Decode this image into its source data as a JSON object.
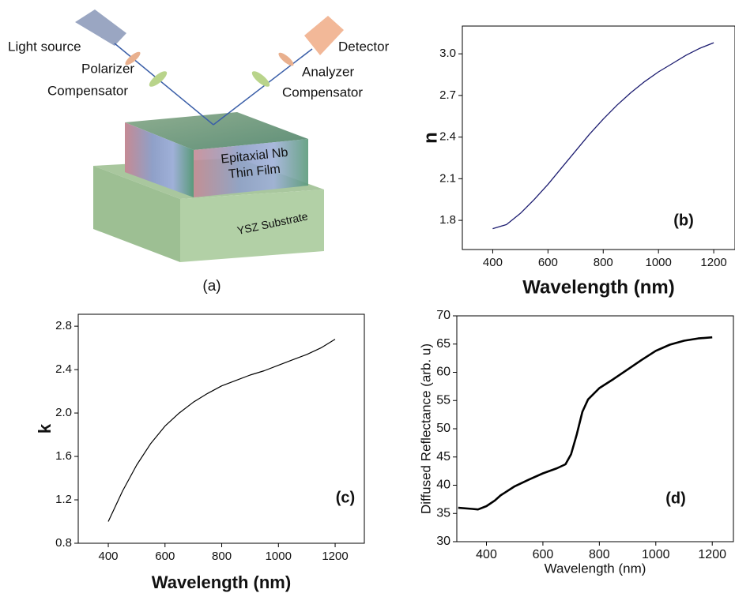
{
  "diagram": {
    "light_source": "Light source",
    "polarizer": "Polarizer",
    "compensator_left": "Compensator",
    "detector": "Detector",
    "analyzer": "Analyzer",
    "compensator_right": "Compensator",
    "film_line1": "Epitaxial Nb",
    "film_line2": "Thin Film",
    "substrate": "YSZ Substrate",
    "panel_label": "(a)"
  },
  "chart_data": [
    {
      "type": "line",
      "annotation": "(b)",
      "x_label": "Wavelength (nm)",
      "y_label": "n",
      "line_width": 1.3,
      "x": [
        400,
        450,
        500,
        550,
        600,
        650,
        700,
        750,
        800,
        850,
        900,
        950,
        1000,
        1050,
        1100,
        1150,
        1200
      ],
      "series": [
        {
          "color": "#1c1c70",
          "values": [
            1.74,
            1.77,
            1.85,
            1.95,
            2.06,
            2.18,
            2.3,
            2.42,
            2.53,
            2.63,
            2.72,
            2.8,
            2.87,
            2.93,
            2.99,
            3.04,
            3.08
          ]
        }
      ],
      "xlim": [
        290,
        1277
      ],
      "ylim": [
        1.59,
        3.2
      ],
      "xticks": [
        400,
        600,
        800,
        1000,
        1200
      ],
      "yticks": [
        1.8,
        2.1,
        2.4,
        2.7,
        {
          "value": 3,
          "label": "3.0"
        }
      ]
    },
    {
      "type": "line",
      "annotation": "(c)",
      "x_label": "Wavelength (nm)",
      "y_label": "k",
      "line_width": 1.2,
      "x": [
        400,
        450,
        500,
        550,
        600,
        650,
        700,
        750,
        800,
        850,
        900,
        950,
        1000,
        1050,
        1100,
        1150,
        1200
      ],
      "series": [
        {
          "color": "#000000",
          "values": [
            1.0,
            1.28,
            1.52,
            1.72,
            1.88,
            2.0,
            2.1,
            2.18,
            2.25,
            2.3,
            2.35,
            2.39,
            2.44,
            2.49,
            2.54,
            2.6,
            2.68
          ]
        }
      ],
      "xlim": [
        294,
        1303
      ],
      "ylim": [
        0.8,
        2.91
      ],
      "xticks": [
        400,
        600,
        800,
        1000,
        1200
      ],
      "yticks": [
        0.8,
        1.2,
        1.6,
        {
          "value": 2,
          "label": "2.0"
        },
        2.4,
        2.8
      ]
    },
    {
      "type": "line",
      "annotation": "(d)",
      "x_label": "Wavelength (nm)",
      "y_label": "Diffused Reflectance (arb. u)",
      "line_width": 2.6,
      "x": [
        300,
        350,
        370,
        400,
        430,
        450,
        500,
        550,
        600,
        650,
        680,
        700,
        720,
        740,
        760,
        800,
        850,
        900,
        950,
        1000,
        1050,
        1100,
        1150,
        1200
      ],
      "series": [
        {
          "color": "#000000",
          "values": [
            36,
            35.8,
            35.7,
            36.3,
            37.3,
            38.2,
            39.8,
            41,
            42.1,
            43,
            43.7,
            45.5,
            49,
            53,
            55.2,
            57.2,
            58.8,
            60.5,
            62.2,
            63.8,
            64.9,
            65.6,
            66,
            66.2
          ]
        }
      ],
      "xlim": [
        295,
        1275
      ],
      "ylim": [
        30,
        70
      ],
      "xticks": [
        400,
        600,
        800,
        1000,
        1200
      ],
      "yticks": [
        30,
        35,
        40,
        45,
        50,
        55,
        60,
        65,
        70
      ]
    }
  ]
}
